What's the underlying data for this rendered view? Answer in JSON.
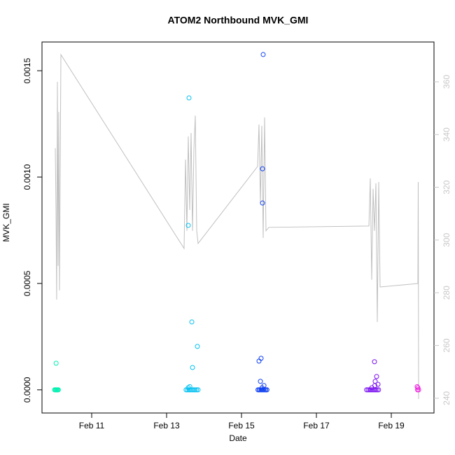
{
  "chart_data": {
    "type": "scatter",
    "title": "ATOM2 Northbound MVK_GMI",
    "xlabel": "Date",
    "ylabel": "MVK_GMI",
    "xlim": [
      9.673,
      20.14
    ],
    "xticks": [
      {
        "value": 11,
        "label": "Feb 11"
      },
      {
        "value": 13,
        "label": "Feb 13"
      },
      {
        "value": 15,
        "label": "Feb 15"
      },
      {
        "value": 17,
        "label": "Feb 17"
      },
      {
        "value": 19,
        "label": "Feb 19"
      }
    ],
    "ylim": [
      -0.000109,
      0.001635
    ],
    "yticks": [
      {
        "value": 0,
        "label": "0.0000"
      },
      {
        "value": 0.0005,
        "label": "0.0005"
      },
      {
        "value": 0.001,
        "label": "0.0010"
      },
      {
        "value": 0.0015,
        "label": "0.0015"
      }
    ],
    "y2lim": [
      234.4,
      375.1
    ],
    "y2ticks": [
      240,
      260,
      280,
      300,
      320,
      340,
      360
    ],
    "y2color": "#c8c8c8",
    "series": [
      {
        "type": "line",
        "axis": "y2",
        "color": "#c0c0c0",
        "x": [
          10.028,
          10.047,
          10.065,
          10.084,
          10.103,
          10.121,
          10.14,
          10.178,
          13.467,
          13.505,
          13.542,
          13.579,
          13.617,
          13.654,
          13.692,
          13.729,
          13.766,
          13.804,
          13.841,
          15.43,
          15.467,
          15.505,
          15.542,
          15.579,
          15.617,
          15.654,
          15.729,
          18.402,
          18.439,
          18.477,
          18.514,
          18.551,
          18.589,
          18.626,
          18.664,
          18.701,
          19.71,
          19.719,
          19.729
        ],
        "values": [
          334.8,
          311.4,
          277.4,
          360.0,
          290.2,
          348.6,
          280.9,
          370.3,
          296.8,
          330.5,
          303.5,
          339.3,
          311.4,
          340.6,
          303.5,
          334.0,
          347.2,
          303.5,
          298.7,
          327.9,
          343.8,
          314.1,
          343.3,
          300.8,
          346.5,
          303.5,
          304.8,
          305.3,
          323.4,
          284.9,
          319.4,
          303.5,
          321.5,
          268.9,
          322.0,
          282.2,
          283.5,
          322.0,
          239.7
        ]
      },
      {
        "type": "scatter",
        "color": "#00f0b0",
        "x": [
          10.01,
          10.03,
          10.05,
          10.07,
          10.09,
          10.11,
          10.05
        ],
        "values": [
          0,
          0,
          0,
          0,
          0,
          0,
          0.000125
        ]
      },
      {
        "type": "scatter",
        "color": "#00c0f0",
        "x": [
          13.52,
          13.56,
          13.6,
          13.64,
          13.68,
          13.72,
          13.76,
          13.8,
          13.84,
          13.58,
          13.62,
          13.598,
          13.579,
          13.673,
          13.822,
          13.692
        ],
        "values": [
          0,
          0,
          0,
          0,
          0,
          0,
          0,
          0,
          0,
          1e-05,
          1.5e-05,
          0.001372,
          0.000773,
          0.000319,
          0.000204,
          0.000105
        ]
      },
      {
        "type": "scatter",
        "color": "#1040f0",
        "x": [
          15.44,
          15.47,
          15.5,
          15.53,
          15.56,
          15.59,
          15.62,
          15.65,
          15.68,
          15.55,
          15.6,
          15.579,
          15.561,
          15.561,
          15.523,
          15.467,
          15.505
        ],
        "values": [
          0,
          0,
          0,
          0,
          0,
          0,
          0,
          0,
          0,
          1e-05,
          2e-05,
          0.001576,
          0.001039,
          0.000878,
          0.000148,
          0.000135,
          4e-05
        ]
      },
      {
        "type": "scatter",
        "color": "#7a10f0",
        "x": [
          18.34,
          18.38,
          18.42,
          18.46,
          18.5,
          18.54,
          18.58,
          18.62,
          18.66,
          18.48,
          18.56,
          18.551,
          18.608,
          18.57,
          18.645
        ],
        "values": [
          0,
          0,
          0,
          0,
          0,
          0,
          0,
          0,
          0,
          1e-05,
          2e-05,
          0.000132,
          6.25e-05,
          4e-05,
          2.6e-05
        ]
      },
      {
        "type": "scatter",
        "color": "#f020e0",
        "x": [
          19.69,
          19.71,
          19.73,
          19.7
        ],
        "values": [
          1.5e-05,
          1e-05,
          0,
          0
        ]
      }
    ]
  }
}
